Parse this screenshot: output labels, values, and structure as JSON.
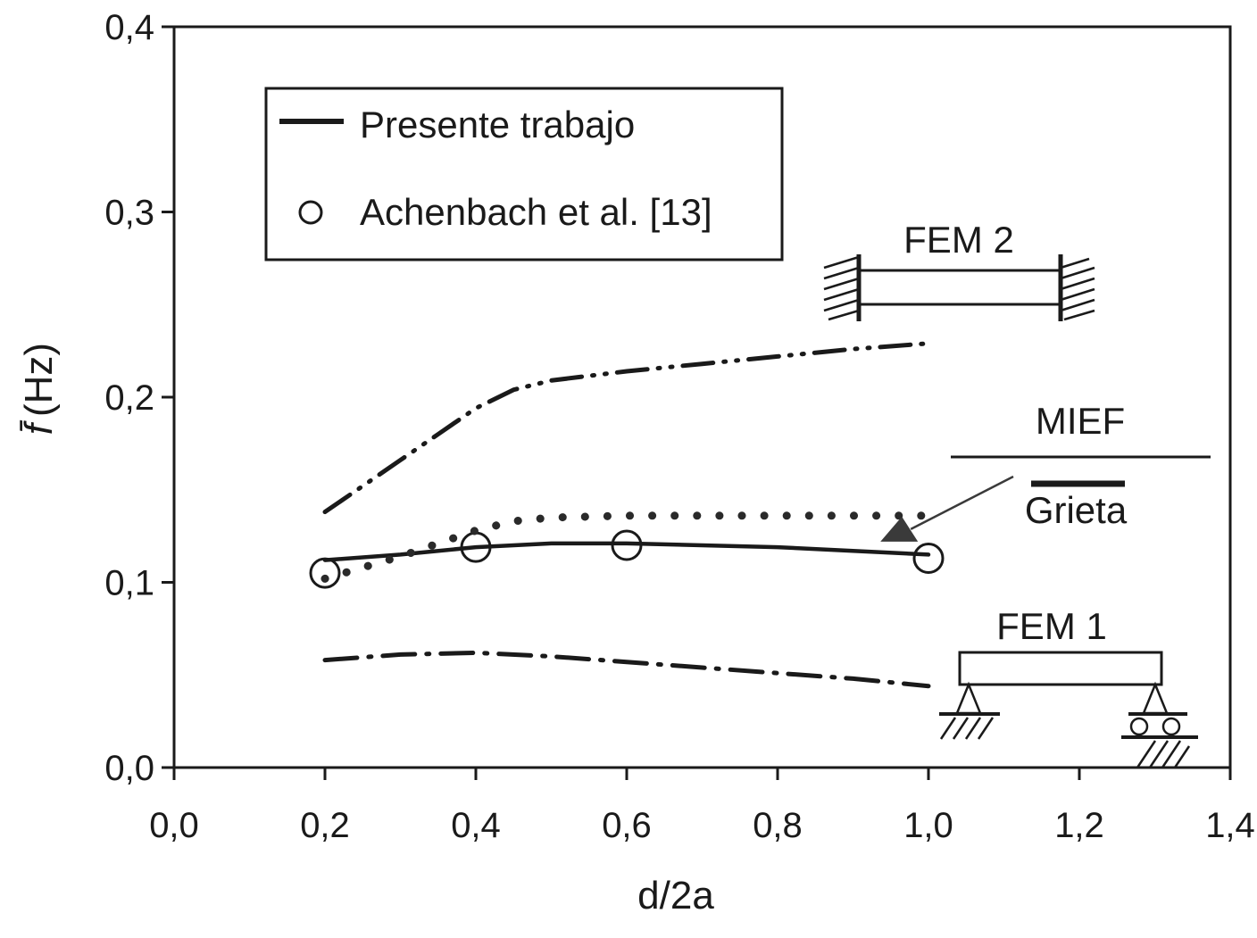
{
  "chart_data": {
    "type": "line",
    "xlabel": "d/2a",
    "ylabel": "(Hz)",
    "ylabel_symbol": "f̄",
    "xlim": [
      0.0,
      1.4
    ],
    "ylim": [
      0.0,
      0.4
    ],
    "x_ticks": [
      0.0,
      0.2,
      0.4,
      0.6,
      0.8,
      1.0,
      1.2,
      1.4
    ],
    "x_tick_labels": [
      "0,0",
      "0,2",
      "0,4",
      "0,6",
      "0,8",
      "1,0",
      "1,2",
      "1,4"
    ],
    "y_ticks": [
      0.0,
      0.1,
      0.2,
      0.3,
      0.4
    ],
    "y_tick_labels": [
      "0,0",
      "0,1",
      "0,2",
      "0,3",
      "0,4"
    ],
    "grid": false,
    "legend": {
      "position": "top-left",
      "entries": [
        {
          "label": "Presente trabajo",
          "marker": "solid-line"
        },
        {
          "label": "Achenbach et al. [13]",
          "marker": "open-circle"
        }
      ]
    },
    "series": [
      {
        "name": "Presente trabajo",
        "style": "solid",
        "x": [
          0.2,
          0.3,
          0.4,
          0.5,
          0.6,
          0.7,
          0.8,
          0.9,
          1.0
        ],
        "y": [
          0.112,
          0.115,
          0.119,
          0.121,
          0.121,
          0.12,
          0.119,
          0.117,
          0.115
        ]
      },
      {
        "name": "Achenbach et al. [13]",
        "style": "circle",
        "x": [
          0.2,
          0.4,
          0.6,
          1.0
        ],
        "y": [
          0.105,
          0.119,
          0.12,
          0.113
        ]
      },
      {
        "style": "dotted",
        "x": [
          0.2,
          0.25,
          0.3,
          0.35,
          0.4,
          0.45,
          0.5,
          0.6,
          0.7,
          0.8,
          0.9,
          1.0
        ],
        "y": [
          0.102,
          0.108,
          0.114,
          0.121,
          0.128,
          0.133,
          0.135,
          0.136,
          0.136,
          0.136,
          0.136,
          0.136
        ]
      },
      {
        "style": "dash-dot-dot",
        "x": [
          0.2,
          0.25,
          0.3,
          0.35,
          0.4,
          0.45,
          0.5,
          0.6,
          0.7,
          0.8,
          0.9,
          1.0
        ],
        "y": [
          0.138,
          0.152,
          0.166,
          0.18,
          0.194,
          0.204,
          0.209,
          0.214,
          0.218,
          0.222,
          0.226,
          0.229
        ]
      },
      {
        "style": "dash-dot",
        "x": [
          0.2,
          0.3,
          0.4,
          0.5,
          0.6,
          0.7,
          0.8,
          0.9,
          1.0
        ],
        "y": [
          0.058,
          0.061,
          0.062,
          0.06,
          0.057,
          0.054,
          0.051,
          0.048,
          0.044
        ]
      }
    ],
    "annotations": {
      "fem2": "FEM 2",
      "mief": "MIEF",
      "grieta": "Grieta",
      "fem1": "FEM 1",
      "arrow_target": {
        "x": 0.96,
        "y": 0.122
      }
    }
  }
}
